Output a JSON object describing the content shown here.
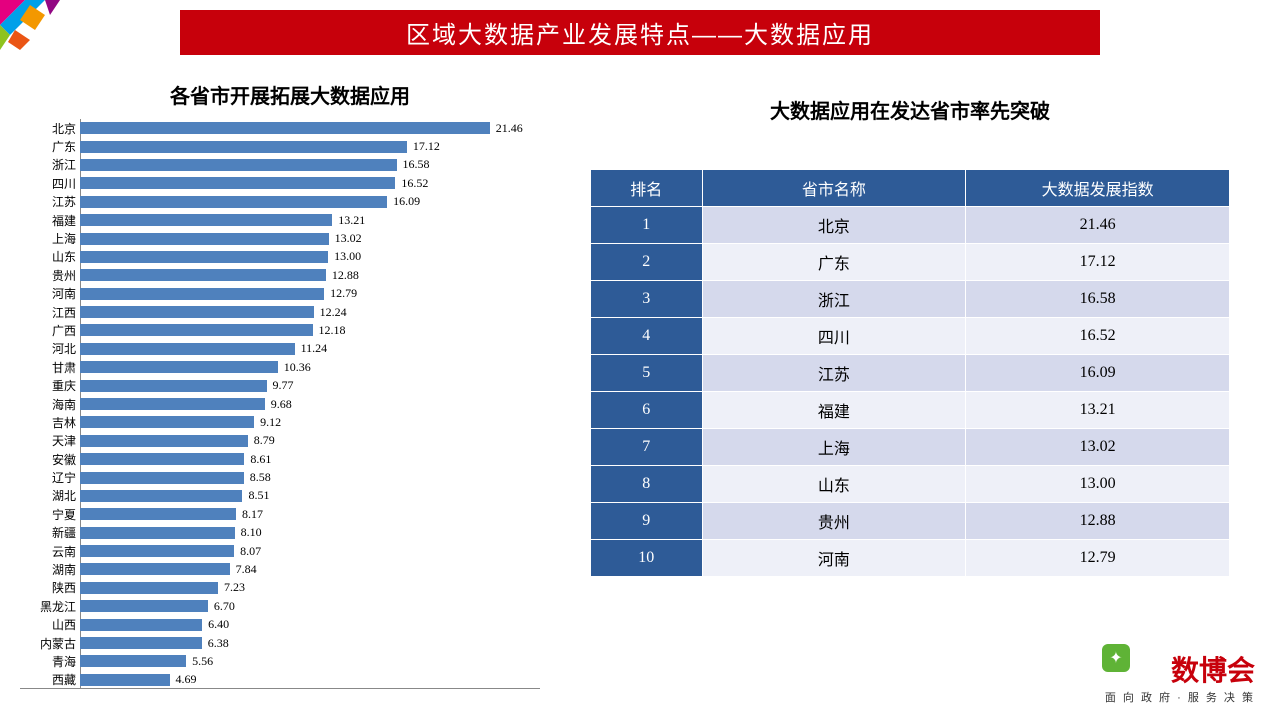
{
  "header": {
    "title": "区域大数据产业发展特点——大数据应用",
    "bg_color": "#c7000b",
    "text_color": "#ffffff"
  },
  "decoration": {
    "colors": [
      "#e4007f",
      "#8fc31f",
      "#00a0e9",
      "#f39800",
      "#ea5514",
      "#920783"
    ]
  },
  "chart": {
    "title": "各省市开展拓展大数据应用",
    "type": "horizontal-bar",
    "xlim": [
      0,
      22
    ],
    "bar_color": "#4f81bd",
    "axis_color": "#888888",
    "label_fontsize": 12,
    "value_fontsize": 12,
    "items": [
      {
        "label": "北京",
        "value": 21.46
      },
      {
        "label": "广东",
        "value": 17.12
      },
      {
        "label": "浙江",
        "value": 16.58
      },
      {
        "label": "四川",
        "value": 16.52
      },
      {
        "label": "江苏",
        "value": 16.09
      },
      {
        "label": "福建",
        "value": 13.21
      },
      {
        "label": "上海",
        "value": 13.02
      },
      {
        "label": "山东",
        "value": 13.0
      },
      {
        "label": "贵州",
        "value": 12.88
      },
      {
        "label": "河南",
        "value": 12.79
      },
      {
        "label": "江西",
        "value": 12.24
      },
      {
        "label": "广西",
        "value": 12.18
      },
      {
        "label": "河北",
        "value": 11.24
      },
      {
        "label": "甘肃",
        "value": 10.36
      },
      {
        "label": "重庆",
        "value": 9.77
      },
      {
        "label": "海南",
        "value": 9.68
      },
      {
        "label": "吉林",
        "value": 9.12
      },
      {
        "label": "天津",
        "value": 8.79
      },
      {
        "label": "安徽",
        "value": 8.61
      },
      {
        "label": "辽宁",
        "value": 8.58
      },
      {
        "label": "湖北",
        "value": 8.51
      },
      {
        "label": "宁夏",
        "value": 8.17
      },
      {
        "label": "新疆",
        "value": 8.1
      },
      {
        "label": "云南",
        "value": 8.07
      },
      {
        "label": "湖南",
        "value": 7.84
      },
      {
        "label": "陕西",
        "value": 7.23
      },
      {
        "label": "黑龙江",
        "value": 6.7
      },
      {
        "label": "山西",
        "value": 6.4
      },
      {
        "label": "内蒙古",
        "value": 6.38
      },
      {
        "label": "青海",
        "value": 5.56
      },
      {
        "label": "西藏",
        "value": 4.69
      }
    ]
  },
  "table": {
    "title": "大数据应用在发达省市率先突破",
    "header_bg": "#2e5b97",
    "rank_bg": "#2e5b97",
    "row_even_bg": "#d5d9ec",
    "row_odd_bg": "#eef0f8",
    "columns": [
      "排名",
      "省市名称",
      "大数据发展指数"
    ],
    "rows": [
      {
        "rank": "1",
        "name": "北京",
        "index": "21.46"
      },
      {
        "rank": "2",
        "name": "广东",
        "index": "17.12"
      },
      {
        "rank": "3",
        "name": "浙江",
        "index": "16.58"
      },
      {
        "rank": "4",
        "name": "四川",
        "index": "16.52"
      },
      {
        "rank": "5",
        "name": "江苏",
        "index": "16.09"
      },
      {
        "rank": "6",
        "name": "福建",
        "index": "13.21"
      },
      {
        "rank": "7",
        "name": "上海",
        "index": "13.02"
      },
      {
        "rank": "8",
        "name": "山东",
        "index": "13.00"
      },
      {
        "rank": "9",
        "name": "贵州",
        "index": "12.88"
      },
      {
        "rank": "10",
        "name": "河南",
        "index": "12.79"
      }
    ]
  },
  "footer": {
    "brand": "数博会",
    "brand_color": "#c7000b",
    "tagline": "面 向 政 府 · 服 务 决 策"
  }
}
